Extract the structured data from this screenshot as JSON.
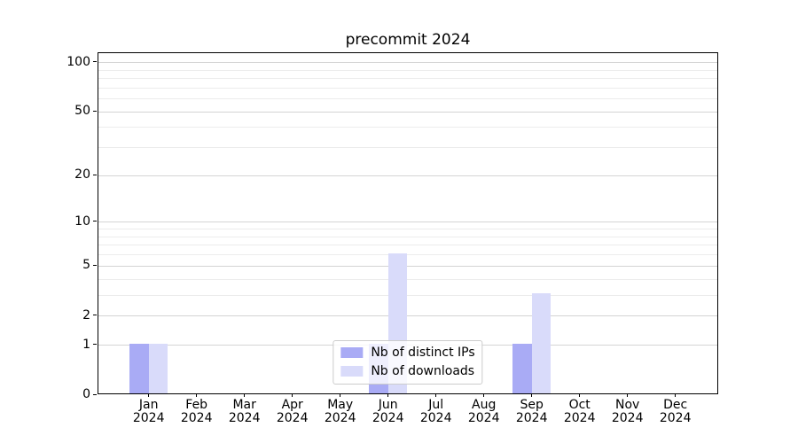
{
  "chart_data": {
    "type": "bar",
    "title": "precommit 2024",
    "x_months": [
      "Jan",
      "Feb",
      "Mar",
      "Apr",
      "May",
      "Jun",
      "Jul",
      "Aug",
      "Sep",
      "Oct",
      "Nov",
      "Dec"
    ],
    "x_year": "2024",
    "series": [
      {
        "name": "Nb of distinct IPs",
        "color": "#a9abf5",
        "values": [
          1,
          0,
          0,
          0,
          0,
          1,
          0,
          0,
          1,
          0,
          0,
          0
        ]
      },
      {
        "name": "Nb of downloads",
        "color": "#d9dbfa",
        "values": [
          1,
          0,
          0,
          0,
          0,
          6,
          0,
          0,
          3,
          0,
          0,
          0
        ]
      }
    ],
    "y_scale": "log1p",
    "ylim": [
      0,
      114
    ],
    "y_major_ticks": [
      0,
      1,
      2,
      5,
      10,
      20,
      50,
      100
    ],
    "y_minor_gridlines": [
      3,
      4,
      6,
      7,
      8,
      9,
      30,
      40,
      60,
      70,
      80,
      90
    ],
    "legend": {
      "position": "lower center",
      "entries": [
        "Nb of distinct IPs",
        "Nb of downloads"
      ]
    },
    "grid": "on",
    "colors": {
      "major_grid": "#d4d4d4",
      "minor_grid": "#ececec",
      "spine": "#000000",
      "background": "#ffffff",
      "text": "#000000"
    }
  }
}
